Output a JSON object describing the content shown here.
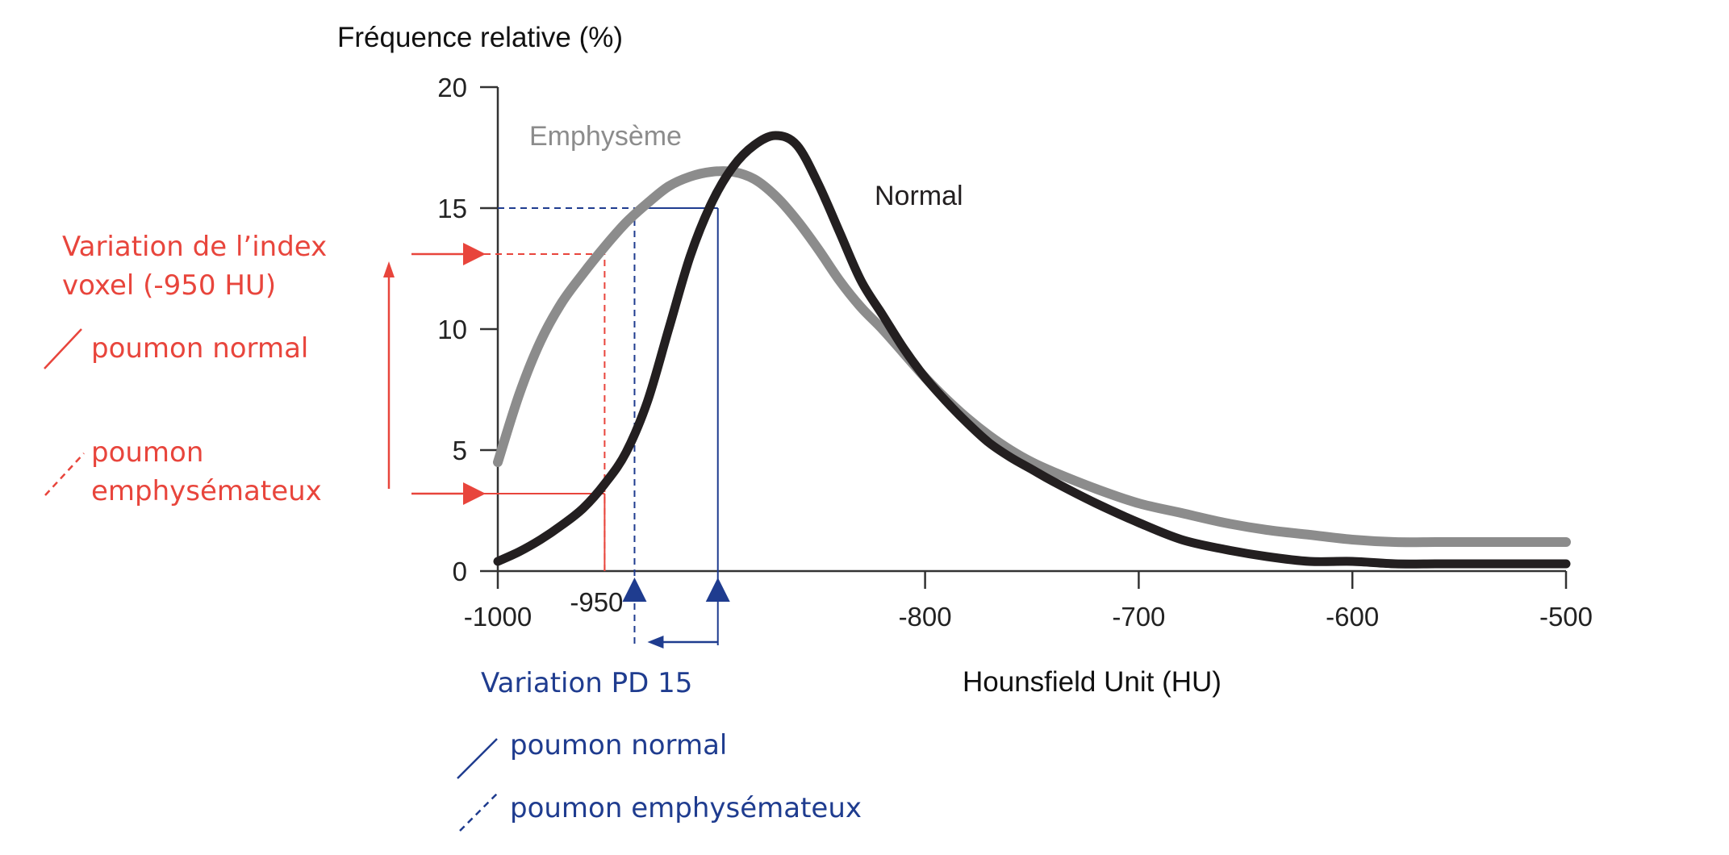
{
  "colors": {
    "axis": "#333333",
    "normal_curve": "#231f20",
    "emphysema_curve": "#8c8c8c",
    "red": "#e8453c",
    "blue": "#1f3c8f"
  },
  "chart_data": {
    "type": "line",
    "ylabel": "Fréquence relative (%)",
    "xlabel": "Hounsfield Unit (HU)",
    "xlim": [
      -1000,
      -500
    ],
    "ylim": [
      0,
      20
    ],
    "xticks": [
      -1000,
      -800,
      -700,
      -600,
      -500
    ],
    "xtick_labels": [
      "-1000",
      "-800",
      "-700",
      "-600",
      "-500"
    ],
    "yticks": [
      0,
      5,
      10,
      15,
      20
    ],
    "ytick_labels": [
      "0",
      "5",
      "10",
      "15",
      "20"
    ],
    "extra_xtick": {
      "value": -950,
      "label": "-950"
    },
    "series": [
      {
        "name": "Emphysème",
        "color": "#8c8c8c",
        "x": [
          -1000,
          -990,
          -980,
          -970,
          -960,
          -950,
          -940,
          -930,
          -920,
          -910,
          -900,
          -890,
          -880,
          -870,
          -860,
          -850,
          -840,
          -830,
          -820,
          -810,
          -800,
          -790,
          -780,
          -770,
          -760,
          -750,
          -740,
          -720,
          -700,
          -680,
          -660,
          -640,
          -620,
          -600,
          -580,
          -560,
          -540,
          -520,
          -500
        ],
        "y": [
          4.5,
          7.3,
          9.5,
          11.1,
          12.3,
          13.4,
          14.4,
          15.2,
          15.9,
          16.3,
          16.5,
          16.5,
          16.2,
          15.5,
          14.5,
          13.3,
          12.0,
          10.9,
          10.0,
          9.0,
          8.0,
          7.1,
          6.3,
          5.6,
          5.0,
          4.5,
          4.1,
          3.4,
          2.8,
          2.4,
          2.0,
          1.7,
          1.5,
          1.3,
          1.2,
          1.2,
          1.2,
          1.2,
          1.2
        ]
      },
      {
        "name": "Normal",
        "color": "#231f20",
        "x": [
          -1000,
          -990,
          -980,
          -970,
          -960,
          -950,
          -940,
          -930,
          -920,
          -910,
          -900,
          -890,
          -880,
          -870,
          -860,
          -850,
          -840,
          -830,
          -820,
          -810,
          -800,
          -790,
          -780,
          -770,
          -760,
          -750,
          -740,
          -720,
          -700,
          -680,
          -660,
          -640,
          -620,
          -600,
          -580,
          -560,
          -540,
          -520,
          -500
        ],
        "y": [
          0.4,
          0.8,
          1.3,
          1.9,
          2.6,
          3.6,
          4.9,
          7.0,
          10.0,
          13.0,
          15.2,
          16.7,
          17.6,
          18.0,
          17.6,
          16.0,
          14.0,
          12.0,
          10.6,
          9.2,
          8.0,
          7.0,
          6.1,
          5.3,
          4.7,
          4.2,
          3.7,
          2.8,
          2.0,
          1.3,
          0.9,
          0.6,
          0.4,
          0.4,
          0.3,
          0.3,
          0.3,
          0.3,
          0.3
        ]
      }
    ],
    "annotations": {
      "voxel_index": {
        "title_lines": [
          "Variation de l’index",
          "voxel (-950 HU)"
        ],
        "x": -950,
        "y_normal": 3.2,
        "y_emphysema": 13.1,
        "legend_normal": "poumon normal",
        "legend_emphysema_lines": [
          "poumon",
          "emphysémateux"
        ]
      },
      "pd15": {
        "title": "Variation PD 15",
        "y": 15,
        "x_normal": -897,
        "x_emphysema": -936,
        "legend_normal": "poumon normal",
        "legend_emphysema": "poumon emphysémateux"
      }
    }
  }
}
